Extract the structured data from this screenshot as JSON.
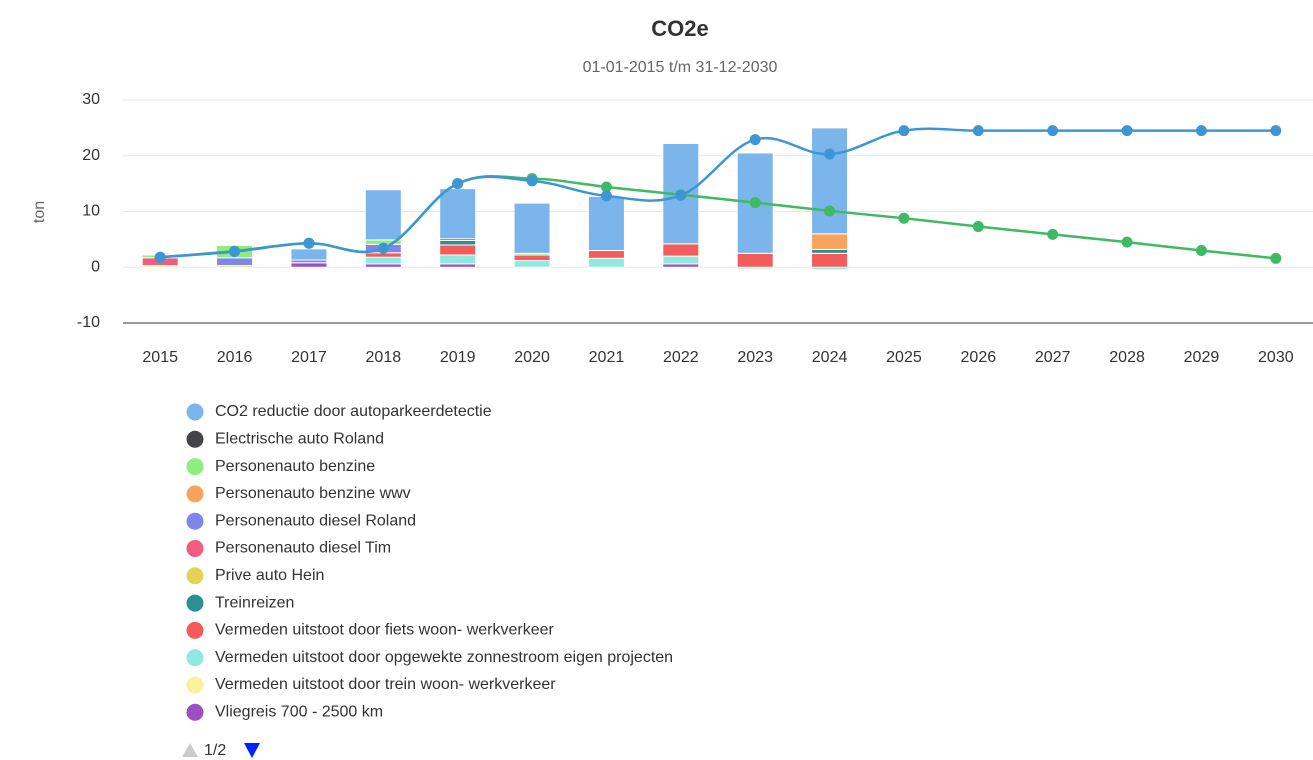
{
  "chart_data": {
    "type": "bar",
    "stacked": true,
    "title": "CO2e",
    "subtitle": "01-01-2015 t/m 31-12-2030",
    "y_label": "ton",
    "categories": [
      "2015",
      "2016",
      "2017",
      "2018",
      "2019",
      "2020",
      "2021",
      "2022",
      "2023",
      "2024",
      "2025",
      "2026",
      "2027",
      "2028",
      "2029",
      "2030"
    ],
    "ylim": [
      -10,
      30
    ],
    "yticks": [
      -10,
      0,
      10,
      20,
      30
    ],
    "grid": true,
    "series": [
      {
        "name": "CO2 reductie door autoparkeerdetectie",
        "type": "bar",
        "color": "#7cb5ec",
        "values": [
          null,
          null,
          2.0,
          9.0,
          9.0,
          9.0,
          9.7,
          18,
          18,
          19,
          null,
          null,
          null,
          null,
          null,
          null
        ]
      },
      {
        "name": "Electrische auto Roland",
        "type": "bar",
        "color": "#434348",
        "values": [
          null,
          null,
          null,
          null,
          0.3,
          null,
          null,
          null,
          null,
          null,
          null,
          null,
          null,
          null,
          null,
          null
        ]
      },
      {
        "name": "Personenauto benzine",
        "type": "bar",
        "color": "#90ed7d",
        "values": [
          0.5,
          2.2,
          null,
          0.8,
          null,
          0.3,
          null,
          null,
          null,
          null,
          null,
          null,
          null,
          null,
          null,
          null
        ]
      },
      {
        "name": "Personenauto benzine wwv",
        "type": "bar",
        "color": "#f7a35c",
        "values": [
          null,
          null,
          null,
          null,
          null,
          null,
          null,
          null,
          null,
          2.8,
          null,
          null,
          null,
          null,
          null,
          null
        ]
      },
      {
        "name": "Personenauto diesel Roland",
        "type": "bar",
        "color": "#8085e9",
        "values": [
          null,
          1.4,
          0.5,
          1.5,
          null,
          null,
          null,
          null,
          null,
          null,
          null,
          null,
          null,
          null,
          null,
          null
        ]
      },
      {
        "name": "Personenauto diesel Tim",
        "type": "bar",
        "color": "#f15c80",
        "values": [
          1.4,
          null,
          null,
          null,
          null,
          null,
          null,
          null,
          null,
          null,
          null,
          null,
          null,
          null,
          null,
          null
        ]
      },
      {
        "name": "Prive auto Hein",
        "type": "bar",
        "color": "#e4d354",
        "values": [
          null,
          0.3,
          null,
          null,
          null,
          null,
          null,
          null,
          null,
          null,
          null,
          null,
          null,
          null,
          null,
          null
        ]
      },
      {
        "name": "Treinreizen",
        "type": "bar",
        "color": "#2b908f",
        "values": [
          null,
          null,
          null,
          null,
          0.8,
          null,
          null,
          null,
          null,
          0.7,
          null,
          null,
          null,
          null,
          null,
          null
        ]
      },
      {
        "name": "Vermeden uitstoot door fiets woon- werkverkeer",
        "type": "bar",
        "color": "#f45b5b",
        "values": [
          null,
          null,
          null,
          0.8,
          1.8,
          1.0,
          1.4,
          2.2,
          2.5,
          2.5,
          null,
          null,
          null,
          null,
          null,
          null
        ]
      },
      {
        "name": "Vermeden uitstoot door opgewekte zonnestroom eigen projecten",
        "type": "bar",
        "color": "#91e8e1",
        "values": [
          null,
          null,
          null,
          1.2,
          1.6,
          1.2,
          1.6,
          1.4,
          -0.3,
          -0.4,
          null,
          null,
          null,
          null,
          null,
          null
        ]
      },
      {
        "name": "Vermeden uitstoot door trein woon- werkverkeer",
        "type": "bar",
        "color": "#f7f39c",
        "values": [
          0.3,
          null,
          null,
          null,
          null,
          null,
          null,
          null,
          null,
          null,
          null,
          null,
          null,
          null,
          null,
          null
        ]
      },
      {
        "name": "Vliegreis 700 - 2500 km",
        "type": "bar",
        "color": "#9b4fc2",
        "values": [
          null,
          null,
          0.8,
          0.6,
          0.6,
          null,
          null,
          0.6,
          null,
          null,
          null,
          null,
          null,
          null,
          null,
          null
        ]
      },
      {
        "type": "line",
        "color": "#3fba64",
        "values": [
          1.8,
          2.9,
          4.3,
          3.4,
          15.0,
          15.9,
          14.4,
          13.0,
          11.6,
          10.1,
          8.8,
          7.3,
          5.9,
          4.5,
          3.0,
          1.6
        ]
      },
      {
        "type": "line",
        "color": "#3d96d4",
        "values": [
          1.8,
          2.8,
          4.3,
          3.4,
          15.0,
          15.5,
          12.8,
          12.9,
          22.9,
          20.3,
          24.5,
          24.5,
          24.5,
          24.5,
          24.5,
          24.5
        ]
      }
    ],
    "legend_page": "1/2"
  }
}
